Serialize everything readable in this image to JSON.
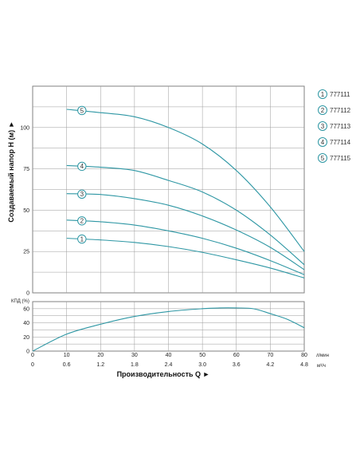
{
  "chart_data": [
    {
      "type": "line",
      "name": "head",
      "ylabel": "Создаваемый напор H (м) ►",
      "ylim": [
        0,
        125
      ],
      "y_ticks": [
        "0",
        "25",
        "50",
        "75",
        "100"
      ],
      "xlim": [
        0,
        80
      ],
      "grid": true,
      "legend_position": "right",
      "line_color": "#2e97a4",
      "series": [
        {
          "name": "777111",
          "marker": "1",
          "x": [
            10,
            20,
            30,
            40,
            50,
            60,
            70,
            80
          ],
          "y": [
            33,
            32,
            30.5,
            28,
            24.5,
            20,
            15,
            9
          ]
        },
        {
          "name": "777112",
          "marker": "2",
          "x": [
            10,
            20,
            30,
            40,
            50,
            60,
            70,
            80
          ],
          "y": [
            44,
            43,
            41,
            37.5,
            33,
            27,
            19.5,
            11
          ]
        },
        {
          "name": "777113",
          "marker": "3",
          "x": [
            10,
            20,
            30,
            40,
            50,
            60,
            70,
            80
          ],
          "y": [
            60,
            59.5,
            57,
            53,
            46.5,
            38,
            27.5,
            14
          ]
        },
        {
          "name": "777114",
          "marker": "4",
          "x": [
            10,
            20,
            30,
            40,
            50,
            60,
            70,
            80
          ],
          "y": [
            77,
            76,
            74,
            68,
            61,
            50,
            35,
            17
          ]
        },
        {
          "name": "777115",
          "marker": "5",
          "x": [
            10,
            20,
            30,
            40,
            50,
            60,
            70,
            80
          ],
          "y": [
            111,
            109,
            106.5,
            100,
            90,
            74,
            52,
            25
          ]
        }
      ]
    },
    {
      "type": "line",
      "name": "efficiency",
      "ylabel": "КПД (%)",
      "ylim": [
        0,
        70
      ],
      "y_ticks": [
        "0",
        "20",
        "40",
        "60"
      ],
      "xlim": [
        0,
        80
      ],
      "grid": true,
      "series": [
        {
          "name": "КПД",
          "x": [
            0,
            10,
            20,
            30,
            40,
            50,
            55,
            60,
            65,
            70,
            75,
            80
          ],
          "y": [
            0,
            24,
            38,
            49,
            56,
            60,
            61,
            61,
            60,
            53,
            45,
            33
          ]
        }
      ]
    }
  ],
  "x_axis": {
    "xlabel": "Производительность Q ►",
    "ticks_lmin": [
      "0",
      "10",
      "20",
      "30",
      "40",
      "50",
      "60",
      "70",
      "80"
    ],
    "ticks_m3h": [
      "0",
      "0.6",
      "1.2",
      "1.8",
      "2.4",
      "3.0",
      "3.6",
      "4.2",
      "4.8"
    ],
    "unit_lmin": "л/мин",
    "unit_m3h": "м³/ч"
  },
  "legend": [
    {
      "marker": "1",
      "label": "777111"
    },
    {
      "marker": "2",
      "label": "777112"
    },
    {
      "marker": "3",
      "label": "777113"
    },
    {
      "marker": "4",
      "label": "777114"
    },
    {
      "marker": "5",
      "label": "777115"
    }
  ],
  "colors": {
    "line": "#2e97a4",
    "marker_ring": "#2e97a4",
    "frame": "#444444",
    "grid": "#9a9a9a"
  }
}
